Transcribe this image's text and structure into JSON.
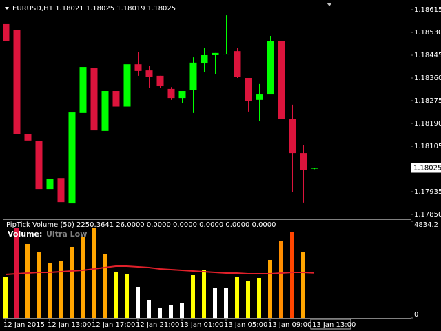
{
  "chart_data": [
    {
      "type": "candlestick",
      "title": "EURUSD,H1 1.18021 1.18025 1.18019 1.18025",
      "categories": [
        "12 Jan 2015",
        null,
        null,
        null,
        "12 Jan 13:00",
        null,
        null,
        null,
        "12 Jan 17:00",
        null,
        null,
        null,
        "12 Jan 21:00",
        null,
        null,
        null,
        "13 Jan 01:00",
        null,
        null,
        null,
        "13 Jan 05:00",
        null,
        null,
        null,
        "13 Jan 09:00",
        null,
        null,
        null,
        "13 Jan 13:00"
      ],
      "open": [
        1.18561,
        1.18538,
        1.18149,
        1.18123,
        1.17945,
        1.17986,
        1.17891,
        1.18229,
        1.18396,
        1.18162,
        1.18311,
        1.18253,
        1.18411,
        1.18388,
        1.18368,
        1.18319,
        1.18285,
        1.18314,
        1.18414,
        1.18445,
        1.18448,
        1.1846,
        1.1836,
        1.18278,
        1.18298,
        1.18497,
        1.18208,
        1.18079,
        1.18021
      ],
      "high": [
        1.18574,
        1.18538,
        1.18239,
        1.18123,
        1.18079,
        1.18038,
        1.18265,
        1.1844,
        1.18424,
        1.18311,
        1.18368,
        1.18445,
        1.18458,
        1.18406,
        1.18368,
        1.18326,
        1.18311,
        1.18437,
        1.18471,
        1.18453,
        1.18594,
        1.18471,
        1.1836,
        1.18337,
        1.18517,
        1.18497,
        1.1826,
        1.1811,
        1.18025
      ],
      "low": [
        1.18484,
        1.18123,
        1.1811,
        1.17925,
        1.17878,
        1.17858,
        1.17886,
        1.18097,
        1.18149,
        1.18084,
        1.18167,
        1.18247,
        1.18368,
        1.18324,
        1.18324,
        1.18278,
        1.18265,
        1.18229,
        1.18383,
        1.18373,
        1.18448,
        1.1836,
        1.18234,
        1.182,
        1.18298,
        1.18208,
        1.17935,
        1.17894,
        1.18019
      ],
      "close": [
        1.18497,
        1.18149,
        1.18126,
        1.17945,
        1.17984,
        1.17896,
        1.18231,
        1.18401,
        1.18164,
        1.18311,
        1.18253,
        1.18411,
        1.18386,
        1.18365,
        1.18329,
        1.18285,
        1.18311,
        1.18417,
        1.18445,
        1.18453,
        1.1845,
        1.18363,
        1.18275,
        1.18298,
        1.18497,
        1.18208,
        1.18079,
        1.18015,
        1.18025
      ],
      "up_color": "#00ff00",
      "down_color": "#dc143c",
      "ylim": [
        1.17832,
        1.18651
      ],
      "yticks": [
        {
          "value": 1.18615,
          "label": "1.18615"
        },
        {
          "value": 1.1853,
          "label": "1.18530"
        },
        {
          "value": 1.18445,
          "label": "1.18445"
        },
        {
          "value": 1.1836,
          "label": "1.18360"
        },
        {
          "value": 1.18275,
          "label": "1.18275"
        },
        {
          "value": 1.1819,
          "label": "1.18190"
        },
        {
          "value": 1.18105,
          "label": "1.18105"
        },
        {
          "value": 1.17935,
          "label": "1.17935"
        },
        {
          "value": 1.1785,
          "label": "1.17850"
        }
      ],
      "current_price": {
        "value": 1.18025,
        "label": "1.18025"
      }
    },
    {
      "type": "bar",
      "title": "PipTick Volume  (50) 2250.3641 26.0000 0.0000 0.0000 0.0000 0.0000 0.0000",
      "label": "Volume:",
      "status": "Ultra Low",
      "values": [
        2037,
        4523,
        3695,
        3280,
        2762,
        2866,
        3557,
        4075,
        4489,
        3211,
        2314,
        2210,
        1554,
        898,
        483,
        622,
        725,
        2141,
        2383,
        1485,
        1519,
        2072,
        1865,
        2003,
        2901,
        3833,
        4282,
        3280,
        0
      ],
      "colors": [
        "#ffff00",
        "#dc143c",
        "#ffa500",
        "#ffa500",
        "#ffa500",
        "#ffa500",
        "#ffa500",
        "#ffa500",
        "#ffa500",
        "#ffa500",
        "#ffff00",
        "#ffff00",
        "#ffffff",
        "#ffffff",
        "#ffffff",
        "#ffffff",
        "#ffffff",
        "#ffff00",
        "#ffff00",
        "#ffffff",
        "#ffffff",
        "#ffff00",
        "#ffff00",
        "#ffff00",
        "#ffa500",
        "#ff8c00",
        "#ff4500",
        "#ffa500",
        "#ffff00"
      ],
      "ma_values": [
        2175,
        2210,
        2244,
        2279,
        2279,
        2313,
        2348,
        2383,
        2452,
        2521,
        2590,
        2590,
        2556,
        2521,
        2452,
        2417,
        2383,
        2348,
        2313,
        2279,
        2244,
        2244,
        2210,
        2210,
        2210,
        2244,
        2279,
        2279,
        2250.3641
      ],
      "ma_color": "#e0202a",
      "ylim": [
        0,
        4834.2
      ],
      "yticks": [
        4834.2,
        0
      ]
    }
  ]
}
